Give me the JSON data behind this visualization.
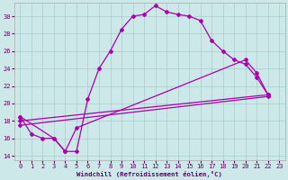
{
  "xlabel": "Windchill (Refroidissement éolien,°C)",
  "bg_color": "#cce8e8",
  "line_color": "#aa00aa",
  "grid_color": "#aacccc",
  "xlim": [
    -0.5,
    23.5
  ],
  "ylim": [
    13.5,
    31.5
  ],
  "yticks": [
    14,
    16,
    18,
    20,
    22,
    24,
    26,
    28,
    30
  ],
  "xticks": [
    0,
    1,
    2,
    3,
    4,
    5,
    6,
    7,
    8,
    9,
    10,
    11,
    12,
    13,
    14,
    15,
    16,
    17,
    18,
    19,
    20,
    21,
    22,
    23
  ],
  "curve1_x": [
    0,
    1,
    2,
    3,
    4,
    5,
    6,
    7,
    8,
    9,
    10,
    11,
    12,
    13,
    14,
    15,
    16,
    17,
    18,
    19,
    20,
    21,
    22
  ],
  "curve1_y": [
    18.5,
    16.5,
    16.0,
    16.0,
    14.5,
    14.5,
    20.5,
    24.0,
    26.0,
    28.5,
    30.0,
    30.2,
    31.2,
    30.5,
    30.2,
    30.0,
    29.5,
    27.2,
    26.0,
    25.0,
    24.5,
    23.0,
    21.0
  ],
  "curve2_x": [
    0,
    3,
    4,
    5,
    20,
    21,
    22
  ],
  "curve2_y": [
    18.5,
    16.0,
    14.5,
    17.2,
    25.0,
    23.5,
    21.0
  ],
  "curve3_x": [
    0,
    22
  ],
  "curve3_y": [
    18.0,
    21.0
  ],
  "curve4_x": [
    0,
    22
  ],
  "curve4_y": [
    17.5,
    20.8
  ]
}
